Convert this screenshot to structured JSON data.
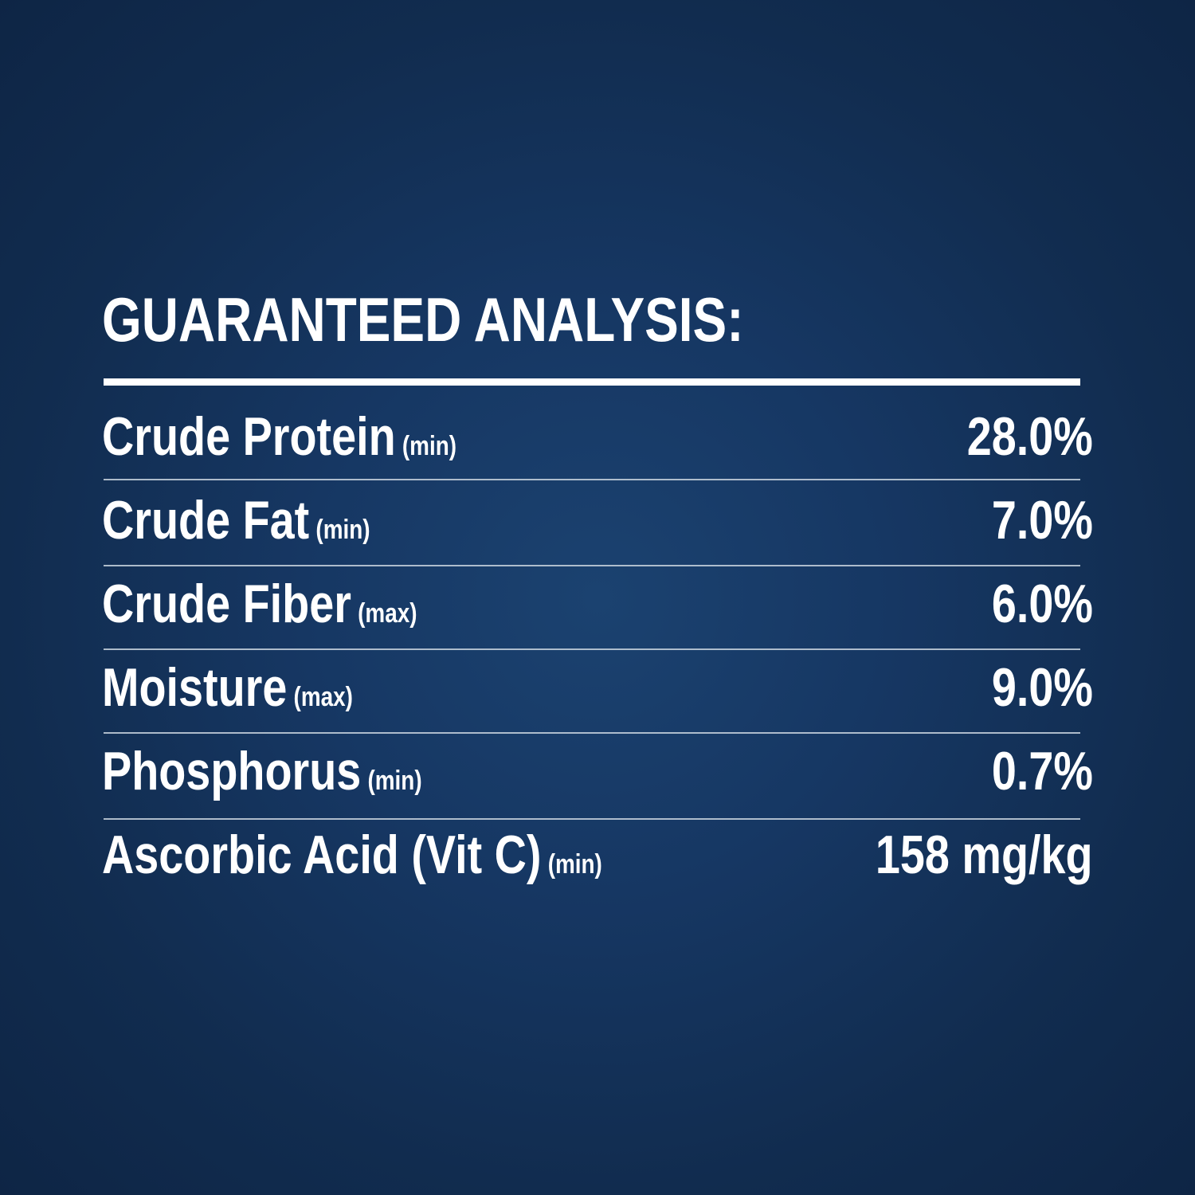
{
  "title": "GUARANTEED ANALYSIS:",
  "rows": [
    {
      "name": "Crude Protein",
      "qualifier": "(min)",
      "value": "28.0%"
    },
    {
      "name": "Crude Fat",
      "qualifier": "(min)",
      "value": "7.0%"
    },
    {
      "name": "Crude Fiber",
      "qualifier": "(max)",
      "value": "6.0%"
    },
    {
      "name": "Moisture",
      "qualifier": "(max)",
      "value": "9.0%"
    },
    {
      "name": "Phosphorus",
      "qualifier": "(min)",
      "value": "0.7%"
    },
    {
      "name": "Ascorbic Acid (Vit C)",
      "qualifier": "(min)",
      "value": "158 mg/kg"
    }
  ],
  "colors": {
    "background": "#163763",
    "text": "#ffffff"
  }
}
